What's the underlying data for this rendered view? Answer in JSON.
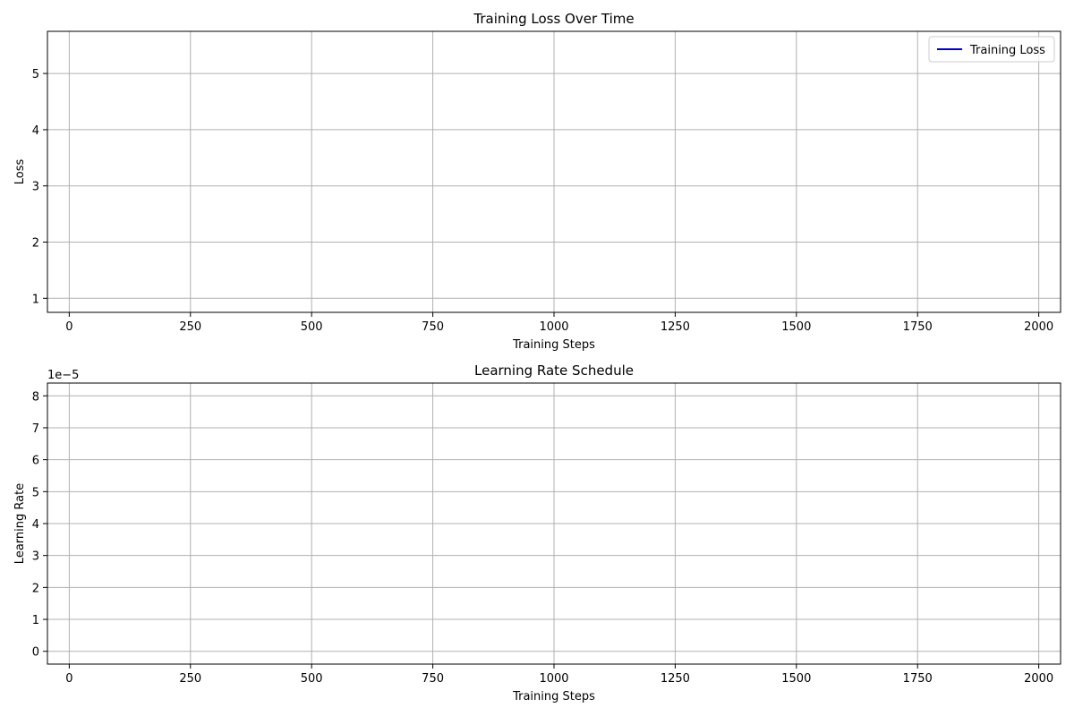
{
  "chart_data": [
    {
      "type": "line",
      "title": "Training Loss Over Time",
      "xlabel": "Training Steps",
      "ylabel": "Loss",
      "xlim": [
        -45,
        2045
      ],
      "ylim": [
        0.75,
        5.75
      ],
      "x_ticks": [
        0,
        250,
        500,
        750,
        1000,
        1250,
        1500,
        1750,
        2000
      ],
      "x_tick_labels": [
        "0",
        "250",
        "500",
        "750",
        "1000",
        "1250",
        "1500",
        "1750",
        "2000"
      ],
      "y_ticks": [
        1,
        2,
        3,
        4,
        5
      ],
      "y_tick_labels": [
        "1",
        "2",
        "3",
        "4",
        "5"
      ],
      "offset_text": "",
      "grid": true,
      "legend": {
        "placement": "upper-right",
        "entries": [
          {
            "label": "Training Loss",
            "color": "#0000cc"
          }
        ]
      },
      "series": [
        {
          "name": "Training Loss",
          "color": "#0000cc",
          "x": [],
          "y": []
        }
      ]
    },
    {
      "type": "line",
      "title": "Learning Rate Schedule",
      "xlabel": "Training Steps",
      "ylabel": "Learning Rate",
      "xlim": [
        -45,
        2045
      ],
      "ylim": [
        -0.4,
        8.4
      ],
      "x_ticks": [
        0,
        250,
        500,
        750,
        1000,
        1250,
        1500,
        1750,
        2000
      ],
      "x_tick_labels": [
        "0",
        "250",
        "500",
        "750",
        "1000",
        "1250",
        "1500",
        "1750",
        "2000"
      ],
      "y_ticks": [
        0,
        1,
        2,
        3,
        4,
        5,
        6,
        7,
        8
      ],
      "y_tick_labels": [
        "0",
        "1",
        "2",
        "3",
        "4",
        "5",
        "6",
        "7",
        "8"
      ],
      "offset_text": "1e−5",
      "grid": true,
      "legend": null,
      "series": [
        {
          "x": [],
          "y": []
        }
      ]
    }
  ]
}
